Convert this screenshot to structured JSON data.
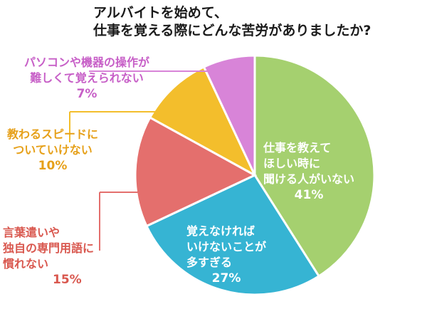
{
  "title": {
    "line1": "アルバイトを始めて、",
    "line2": "仕事を覚える際にどんな苦労がありましたか?"
  },
  "chart_data": {
    "type": "pie",
    "title": "アルバイトを始めて、仕事を覚える際にどんな苦労がありましたか?",
    "slices": [
      {
        "label_lines": [
          "仕事を教えて",
          "ほしい時に",
          "聞ける人がいない"
        ],
        "value": 41,
        "value_label": "41%",
        "color": "#a5d06f",
        "label_color": "#ffffff",
        "label_inside": true
      },
      {
        "label_lines": [
          "覚えなければ",
          "いけないことが",
          "多すぎる"
        ],
        "value": 27,
        "value_label": "27%",
        "color": "#36b4d3",
        "label_color": "#ffffff",
        "label_inside": true
      },
      {
        "label_lines": [
          "言葉遣いや",
          "独自の専門用語に",
          "慣れない"
        ],
        "value": 15,
        "value_label": "15%",
        "color": "#e46f6d",
        "label_color": "#d9584f",
        "label_inside": false
      },
      {
        "label_lines": [
          "教わるスピードに",
          "ついていけない"
        ],
        "value": 10,
        "value_label": "10%",
        "color": "#f3be2c",
        "label_color": "#e6a019",
        "label_inside": false
      },
      {
        "label_lines": [
          "パソコンや機器の操作が",
          "難しくて覚えられない"
        ],
        "value": 7,
        "value_label": "7%",
        "color": "#d884d8",
        "label_color": "#c75fc7",
        "label_inside": false
      }
    ]
  }
}
